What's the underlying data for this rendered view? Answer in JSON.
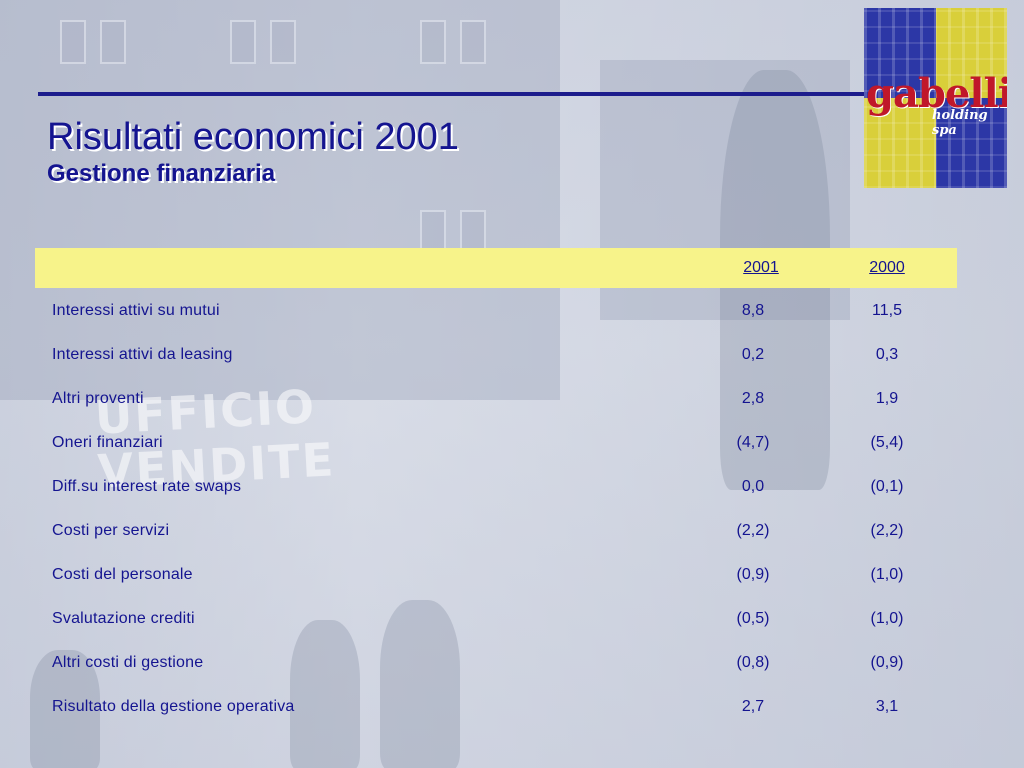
{
  "slide": {
    "title": "Risultati economici 2001",
    "subtitle": "Gestione finanziaria"
  },
  "logo": {
    "brand": "gabelli",
    "subtitle": "holding spa"
  },
  "background": {
    "sign_text": "UFFICIO VENDITE"
  },
  "table": {
    "headers": [
      "2001",
      "2000"
    ],
    "rows": [
      {
        "label": "Interessi attivi su mutui",
        "v2001": "8,8",
        "v2000": "11,5"
      },
      {
        "label": "Interessi attivi da leasing",
        "v2001": "0,2",
        "v2000": "0,3"
      },
      {
        "label": "Altri proventi",
        "v2001": "2,8",
        "v2000": "1,9"
      },
      {
        "label": "Oneri finanziari",
        "v2001": "(4,7)",
        "v2000": "(5,4)"
      },
      {
        "label": "Diff.su interest rate swaps",
        "v2001": "0,0",
        "v2000": "(0,1)"
      },
      {
        "label": "Costi per servizi",
        "v2001": "(2,2)",
        "v2000": "(2,2)"
      },
      {
        "label": "Costi del personale",
        "v2001": "(0,9)",
        "v2000": "(1,0)"
      },
      {
        "label": "Svalutazione crediti",
        "v2001": "(0,5)",
        "v2000": "(1,0)"
      },
      {
        "label": "Altri costi di gestione",
        "v2001": "(0,8)",
        "v2000": "(0,9)"
      },
      {
        "label": "Risultato della gestione operativa",
        "v2001": "2,7",
        "v2000": "3,1"
      }
    ]
  },
  "colors": {
    "text": "#141490",
    "header_band": "#f7f38a",
    "rule": "#1c1c8c",
    "logo_blue": "#2c37a6",
    "logo_yellow": "#d9cf3a",
    "logo_red": "#c0182a"
  }
}
